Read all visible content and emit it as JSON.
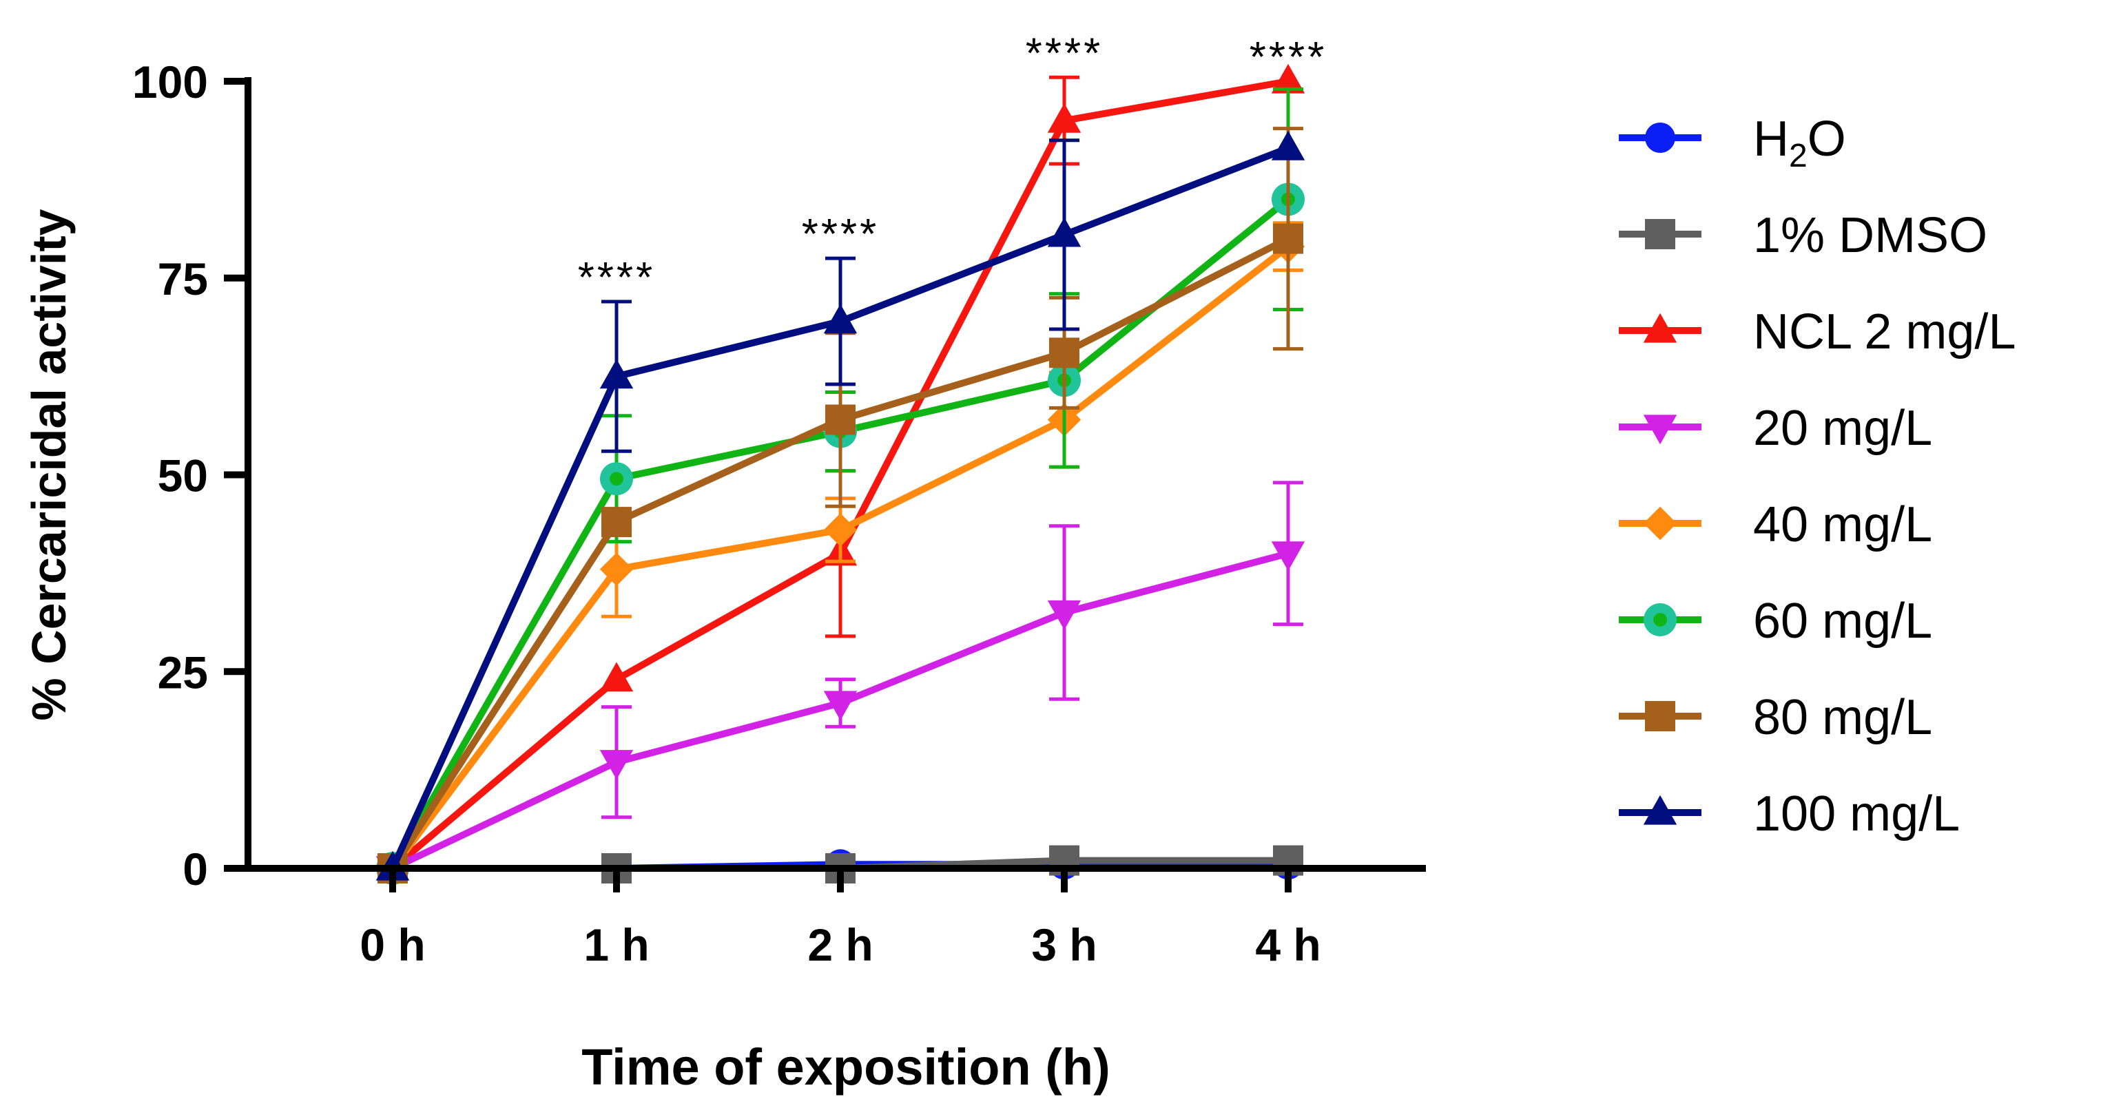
{
  "chart_data": {
    "type": "line",
    "title": "",
    "xlabel": "Time of exposition (h)",
    "ylabel": "% Cercaricidal activity",
    "categories": [
      "0 h",
      "1 h",
      "2 h",
      "3 h",
      "4 h"
    ],
    "y_ticks": [
      0,
      25,
      50,
      75,
      100
    ],
    "ylim": [
      0,
      100
    ],
    "grid": false,
    "legend_position": "right",
    "significance_labels": [
      "****",
      "****",
      "****",
      "****"
    ],
    "significance_at": [
      "1 h",
      "2 h",
      "3 h",
      "4 h"
    ],
    "series": [
      {
        "name": "H2O",
        "legend_main": "H",
        "legend_sub": "2",
        "legend_rest": "O",
        "color": "#0a1ef5",
        "marker": "circle",
        "values": [
          0,
          0,
          0.5,
          0.5,
          0.5
        ],
        "errors": [
          0,
          0,
          0,
          0,
          0
        ]
      },
      {
        "name": "1% DMSO",
        "color": "#5f5f5f",
        "marker": "square",
        "values": [
          0,
          0,
          0,
          1,
          1
        ],
        "errors": [
          0,
          0,
          0,
          0,
          0
        ]
      },
      {
        "name": "NCL 2 mg/L",
        "color": "#f5160f",
        "marker": "triangle-up",
        "values": [
          0,
          24,
          40,
          95,
          100
        ],
        "errors": [
          0,
          0,
          10.5,
          5.5,
          0
        ]
      },
      {
        "name": "20 mg/L",
        "color": "#d222e6",
        "marker": "triangle-down",
        "values": [
          0,
          13.5,
          21,
          32.5,
          40
        ],
        "errors": [
          0,
          7,
          3,
          11,
          9
        ]
      },
      {
        "name": "40 mg/L",
        "color": "#ff8a0f",
        "marker": "diamond",
        "values": [
          0,
          38,
          43,
          57,
          79
        ],
        "errors": [
          0,
          6,
          4,
          6,
          3
        ]
      },
      {
        "name": "60 mg/L",
        "color": "#10b414",
        "marker": "circle-ring",
        "ring_color": "#21c49a",
        "values": [
          0,
          49.5,
          55.5,
          62,
          85
        ],
        "errors": [
          0,
          8,
          5,
          11,
          14
        ]
      },
      {
        "name": "80 mg/L",
        "color": "#a5611c",
        "marker": "square",
        "values": [
          0,
          44,
          57,
          65.5,
          80
        ],
        "errors": [
          0,
          0,
          11,
          7,
          14
        ]
      },
      {
        "name": "100 mg/L",
        "color": "#000e80",
        "marker": "triangle-up",
        "values": [
          0,
          62.5,
          69.5,
          80.5,
          91.5
        ],
        "errors": [
          0,
          9.5,
          8,
          12,
          0
        ]
      }
    ]
  }
}
